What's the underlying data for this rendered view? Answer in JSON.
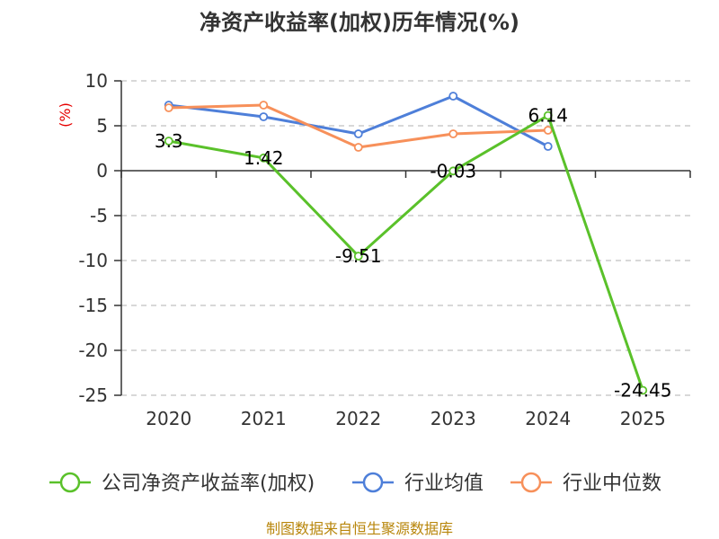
{
  "chart_data": {
    "type": "line",
    "title": "净资产收益率(加权)历年情况(%)",
    "ylabel": "(%)",
    "xlabel": "",
    "categories": [
      "2020",
      "2021",
      "2022",
      "2023",
      "2024",
      "2025"
    ],
    "ylim": [
      -25,
      10
    ],
    "yticks": [
      10,
      5,
      0,
      -5,
      -10,
      -15,
      -20,
      -25
    ],
    "ytick_labels": [
      "10",
      "5",
      "0",
      "-5",
      "-10",
      "-15",
      "-20",
      "-25"
    ],
    "grid": true,
    "legend_position": "bottom",
    "series": [
      {
        "name": "公司净资产收益率(加权)",
        "color": "#5ac12a",
        "values": [
          3.3,
          1.42,
          -9.51,
          -0.03,
          6.14,
          -24.45
        ],
        "labels": [
          "3.3",
          "1.42",
          "-9.51",
          "-0.03",
          "6.14",
          "-24.45"
        ]
      },
      {
        "name": "行业均值",
        "color": "#4e7fd9",
        "values": [
          7.3,
          6.0,
          4.1,
          8.3,
          2.7,
          null
        ]
      },
      {
        "name": "行业中位数",
        "color": "#f7905a",
        "values": [
          7.0,
          7.3,
          2.6,
          4.1,
          4.5,
          null
        ]
      }
    ]
  },
  "source": "制图数据来自恒生聚源数据库"
}
